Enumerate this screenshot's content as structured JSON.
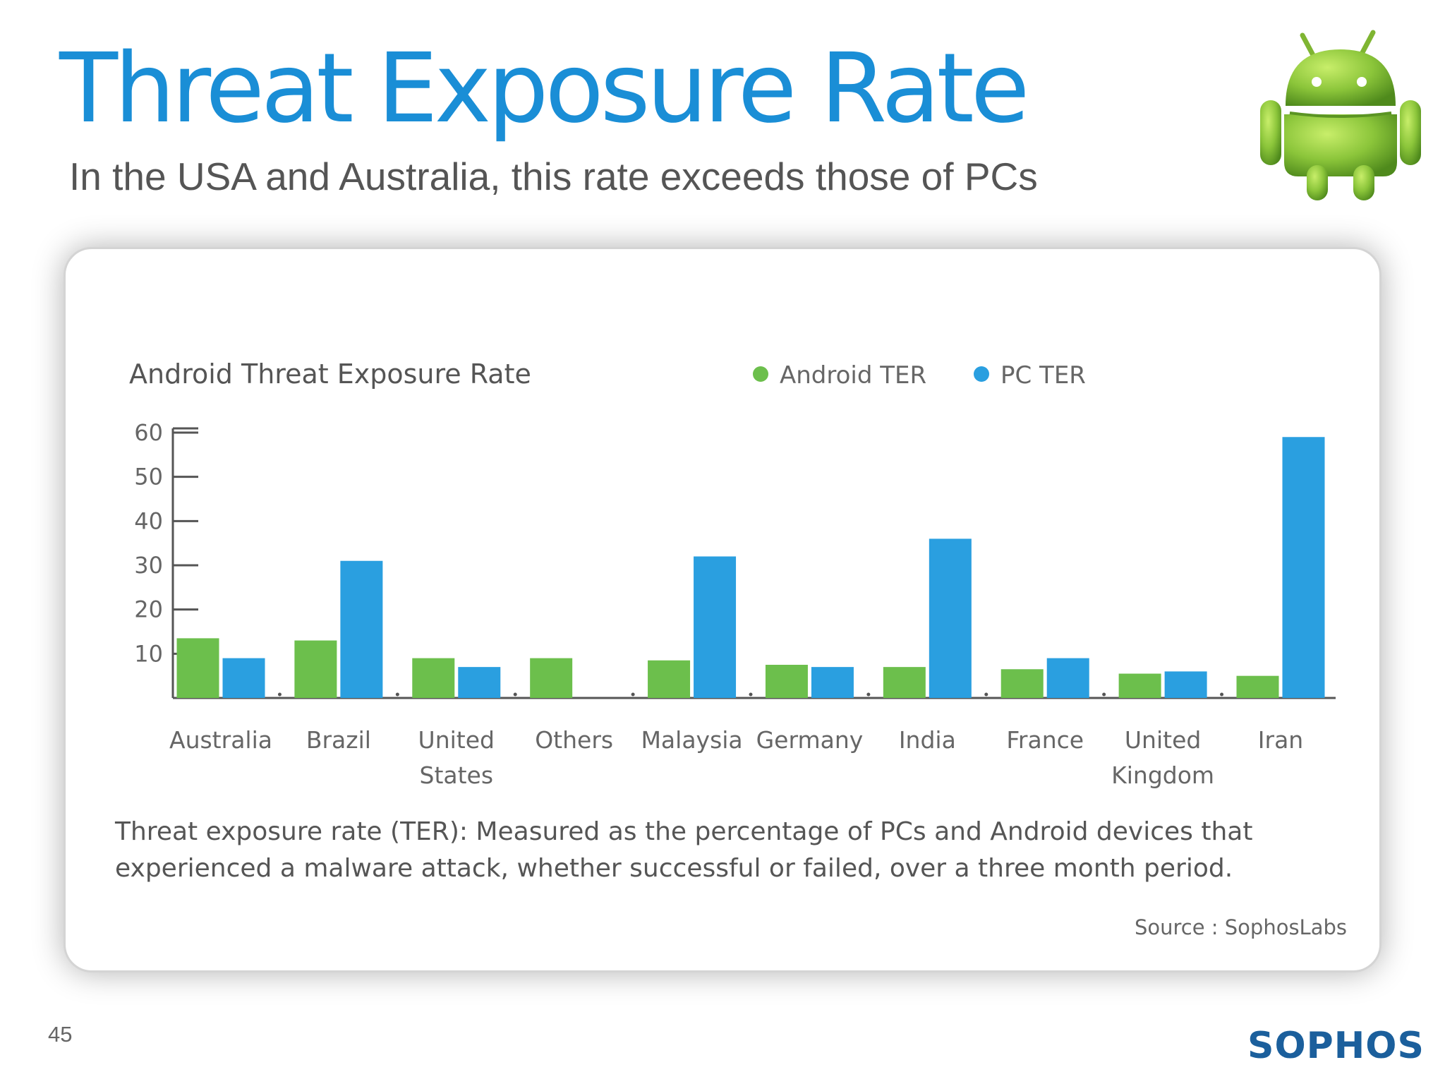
{
  "slide": {
    "title": "Threat Exposure Rate",
    "subtitle": "In the USA and Australia, this rate exceeds those of PCs",
    "page_number": "45",
    "brand": "SOPHOS",
    "colors": {
      "title": "#1a8ed6",
      "brand": "#1b5f9c",
      "android_green": "#6cbf4c",
      "pc_blue": "#2a9fe0"
    },
    "logo_icon": "android-robot-icon"
  },
  "chart_data": {
    "type": "bar",
    "title": "Android Threat Exposure Rate",
    "categories": [
      [
        "Australia"
      ],
      [
        "Brazil"
      ],
      [
        "United",
        "States"
      ],
      [
        "Others"
      ],
      [
        "Malaysia"
      ],
      [
        "Germany"
      ],
      [
        "India"
      ],
      [
        "France"
      ],
      [
        "United",
        "Kingdom"
      ],
      [
        "Iran"
      ]
    ],
    "series": [
      {
        "name": "Android TER",
        "color": "#6cbf4c",
        "values": [
          13.5,
          13,
          9,
          9,
          8.5,
          7.5,
          7,
          6.5,
          5.5,
          5
        ]
      },
      {
        "name": "PC TER",
        "color": "#2a9fe0",
        "values": [
          9,
          31,
          7,
          null,
          32,
          7,
          36,
          9,
          6,
          59
        ]
      }
    ],
    "yticks": [
      10,
      20,
      30,
      40,
      50,
      60
    ],
    "ylim": [
      0,
      60
    ],
    "xlabel": "",
    "ylabel": "",
    "grid": false,
    "legend_position": "top"
  },
  "notes": {
    "definition": "Threat exposure rate (TER): Measured as the percentage of PCs and Android devices that experienced a malware attack, whether successful or failed, over a three month period.",
    "source": "Source : SophosLabs"
  }
}
